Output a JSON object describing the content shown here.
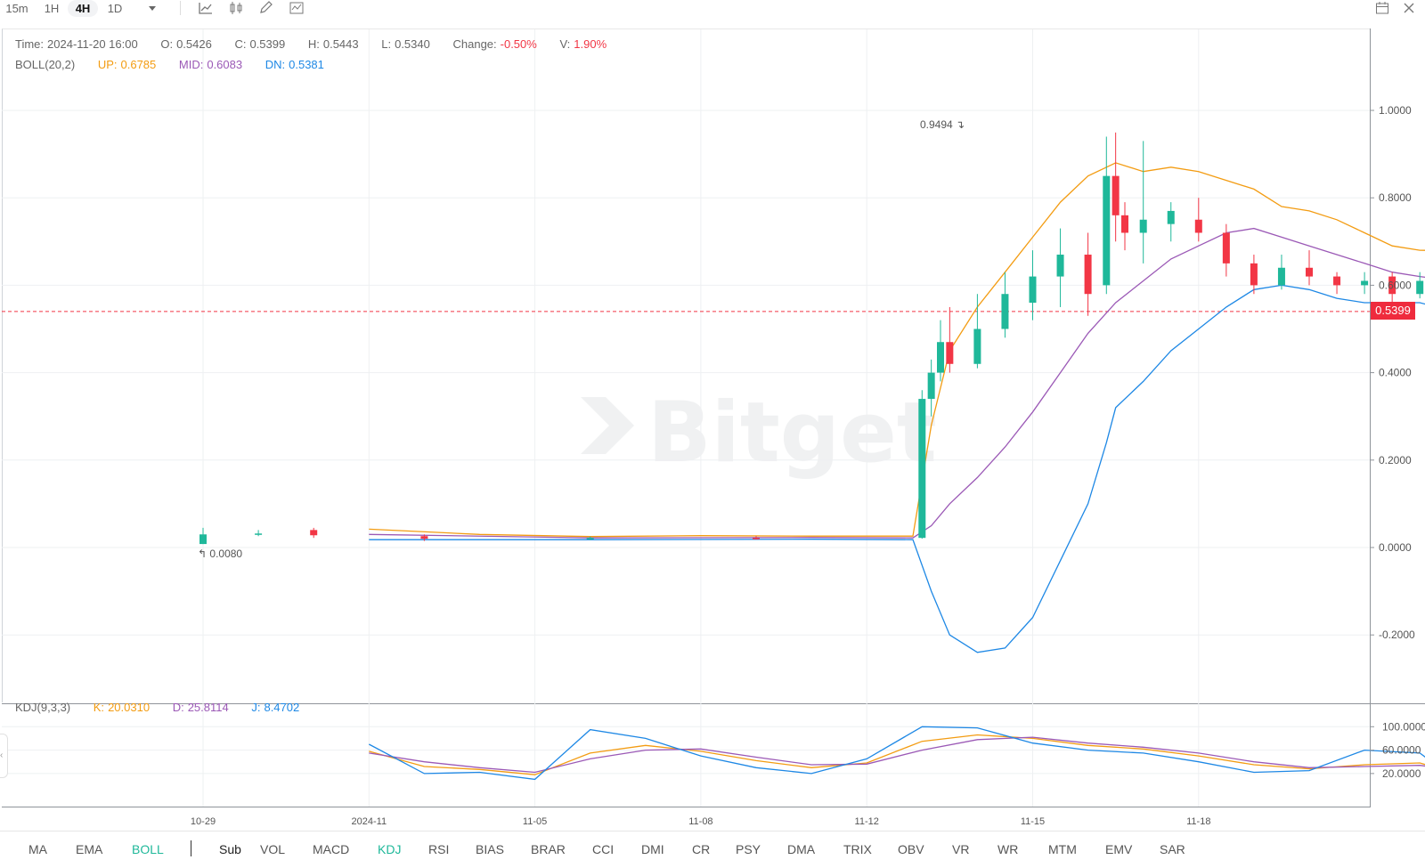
{
  "toolbar": {
    "timeframes": [
      "15m",
      "1H",
      "4H",
      "1D"
    ],
    "active_timeframe": "4H",
    "dropdown_icon": "caret-down-icon",
    "tools": [
      "line-chart-icon",
      "candlestick-icon",
      "pen-icon",
      "indicator-icon"
    ],
    "right_icons": [
      "calendar-icon",
      "close-icon"
    ]
  },
  "ohlc": {
    "time_label": "Time:",
    "time": "2024-11-20 16:00",
    "open_label": "O:",
    "open": "0.5426",
    "close_label": "C:",
    "close": "0.5399",
    "high_label": "H:",
    "high": "0.5443",
    "low_label": "L:",
    "low": "0.5340",
    "change_label": "Change:",
    "change": "-0.50%",
    "volume_label": "V:",
    "volume": "1.90%"
  },
  "boll": {
    "name": "BOLL(20,2)",
    "up_label": "UP:",
    "up": "0.6785",
    "mid_label": "MID:",
    "mid": "0.6083",
    "dn_label": "DN:",
    "dn": "0.5381"
  },
  "kdj": {
    "name": "KDJ(9,3,3)",
    "k_label": "K:",
    "k": "20.0310",
    "d_label": "D:",
    "d": "25.8114",
    "j_label": "J:",
    "j": "8.4702"
  },
  "price_tag": "0.5399",
  "watermark": "Bitget",
  "indicator_tabs": {
    "main": [
      "MA",
      "EMA",
      "BOLL"
    ],
    "main_active": "BOLL",
    "sub_label": "Sub",
    "sub": [
      "VOL",
      "MACD",
      "KDJ",
      "RSI",
      "BIAS",
      "BRAR",
      "CCI",
      "DMI",
      "CR",
      "PSY",
      "DMA",
      "TRIX",
      "OBV",
      "VR",
      "WR",
      "MTM",
      "EMV",
      "SAR"
    ],
    "sub_active": "KDJ"
  },
  "colors": {
    "up": "#1fb89a",
    "down": "#f23645",
    "boll_up": "#f39c12",
    "boll_mid": "#9b59b6",
    "boll_dn": "#1e88e5",
    "kdj_k": "#f39c12",
    "kdj_d": "#9b59b6",
    "kdj_j": "#1e88e5"
  },
  "chart_data": [
    {
      "type": "candlestick",
      "title": "",
      "timeframe": "4H",
      "x_range": [
        "2024-10-29",
        "2024-11-20 16:00"
      ],
      "x_tick_labels": [
        "10-29",
        "2024-11",
        "11-05",
        "11-08",
        "11-12",
        "11-15",
        "11-18"
      ],
      "y_ticks": [
        "1.0000",
        "0.8000",
        "0.6000",
        "0.4000",
        "0.2000",
        "0.0000",
        "-0.2000"
      ],
      "ylim": [
        -0.3,
        1.1
      ],
      "annotations": {
        "high_marker": "0.9494",
        "low_marker": "0.0080"
      },
      "last_price_line": 0.5399,
      "candles_sampled": [
        {
          "t": "10-29",
          "o": 0.008,
          "c": 0.03,
          "h": 0.045,
          "l": 0.008
        },
        {
          "t": "10-30",
          "o": 0.03,
          "c": 0.032,
          "h": 0.04,
          "l": 0.026
        },
        {
          "t": "10-31",
          "o": 0.04,
          "c": 0.028,
          "h": 0.045,
          "l": 0.022
        },
        {
          "t": "11-02",
          "o": 0.026,
          "c": 0.02,
          "h": 0.03,
          "l": 0.015
        },
        {
          "t": "11-05",
          "o": 0.02,
          "c": 0.022,
          "h": 0.025,
          "l": 0.017
        },
        {
          "t": "11-08",
          "o": 0.022,
          "c": 0.021,
          "h": 0.026,
          "l": 0.018
        },
        {
          "t": "11-11 00:00",
          "o": 0.022,
          "c": 0.34,
          "h": 0.36,
          "l": 0.02
        },
        {
          "t": "11-11 04:00",
          "o": 0.34,
          "c": 0.4,
          "h": 0.43,
          "l": 0.3
        },
        {
          "t": "11-11 08:00",
          "o": 0.4,
          "c": 0.47,
          "h": 0.52,
          "l": 0.38
        },
        {
          "t": "11-11 12:00",
          "o": 0.47,
          "c": 0.42,
          "h": 0.55,
          "l": 0.4
        },
        {
          "t": "11-12 00:00",
          "o": 0.42,
          "c": 0.5,
          "h": 0.58,
          "l": 0.41
        },
        {
          "t": "11-12 12:00",
          "o": 0.5,
          "c": 0.58,
          "h": 0.63,
          "l": 0.48
        },
        {
          "t": "11-13 00:00",
          "o": 0.56,
          "c": 0.62,
          "h": 0.68,
          "l": 0.52
        },
        {
          "t": "11-13 12:00",
          "o": 0.62,
          "c": 0.67,
          "h": 0.73,
          "l": 0.55
        },
        {
          "t": "11-14 00:00",
          "o": 0.67,
          "c": 0.58,
          "h": 0.72,
          "l": 0.53
        },
        {
          "t": "11-14 08:00",
          "o": 0.6,
          "c": 0.85,
          "h": 0.94,
          "l": 0.58
        },
        {
          "t": "11-14 12:00",
          "o": 0.85,
          "c": 0.76,
          "h": 0.9494,
          "l": 0.7
        },
        {
          "t": "11-14 16:00",
          "o": 0.76,
          "c": 0.72,
          "h": 0.79,
          "l": 0.68
        },
        {
          "t": "11-15 00:00",
          "o": 0.72,
          "c": 0.75,
          "h": 0.93,
          "l": 0.65
        },
        {
          "t": "11-15 12:00",
          "o": 0.74,
          "c": 0.77,
          "h": 0.79,
          "l": 0.7
        },
        {
          "t": "11-16 00:00",
          "o": 0.75,
          "c": 0.72,
          "h": 0.8,
          "l": 0.7
        },
        {
          "t": "11-16 12:00",
          "o": 0.72,
          "c": 0.65,
          "h": 0.74,
          "l": 0.62
        },
        {
          "t": "11-17 00:00",
          "o": 0.65,
          "c": 0.6,
          "h": 0.67,
          "l": 0.58
        },
        {
          "t": "11-17 12:00",
          "o": 0.6,
          "c": 0.64,
          "h": 0.67,
          "l": 0.59
        },
        {
          "t": "11-18 00:00",
          "o": 0.64,
          "c": 0.62,
          "h": 0.68,
          "l": 0.6
        },
        {
          "t": "11-18 12:00",
          "o": 0.62,
          "c": 0.6,
          "h": 0.63,
          "l": 0.58
        },
        {
          "t": "11-19 00:00",
          "o": 0.6,
          "c": 0.61,
          "h": 0.63,
          "l": 0.58
        },
        {
          "t": "11-19 12:00",
          "o": 0.62,
          "c": 0.58,
          "h": 0.63,
          "l": 0.56
        },
        {
          "t": "11-20 00:00",
          "o": 0.58,
          "c": 0.61,
          "h": 0.63,
          "l": 0.57
        },
        {
          "t": "11-20 08:00",
          "o": 0.61,
          "c": 0.57,
          "h": 0.62,
          "l": 0.55
        },
        {
          "t": "11-20 16:00",
          "o": 0.5426,
          "c": 0.5399,
          "h": 0.5443,
          "l": 0.534
        }
      ],
      "series": [
        {
          "name": "UP",
          "color": "#f39c12",
          "points": [
            [
              "11-01",
              0.042
            ],
            [
              "11-03",
              0.03
            ],
            [
              "11-05",
              0.025
            ],
            [
              "11-07",
              0.027
            ],
            [
              "11-09",
              0.026
            ],
            [
              "11-10 20:00",
              0.026
            ],
            [
              "11-11 04:00",
              0.28
            ],
            [
              "11-11 12:00",
              0.45
            ],
            [
              "11-12 00:00",
              0.55
            ],
            [
              "11-12 12:00",
              0.63
            ],
            [
              "11-13 00:00",
              0.71
            ],
            [
              "11-13 12:00",
              0.79
            ],
            [
              "11-14 00:00",
              0.85
            ],
            [
              "11-14 12:00",
              0.88
            ],
            [
              "11-15 00:00",
              0.86
            ],
            [
              "11-15 12:00",
              0.87
            ],
            [
              "11-16 00:00",
              0.86
            ],
            [
              "11-16 12:00",
              0.84
            ],
            [
              "11-17 00:00",
              0.82
            ],
            [
              "11-17 12:00",
              0.78
            ],
            [
              "11-18 00:00",
              0.77
            ],
            [
              "11-18 12:00",
              0.75
            ],
            [
              "11-19 00:00",
              0.72
            ],
            [
              "11-19 12:00",
              0.69
            ],
            [
              "11-20 00:00",
              0.68
            ],
            [
              "11-20 16:00",
              0.6785
            ]
          ]
        },
        {
          "name": "MID",
          "color": "#9b59b6",
          "points": [
            [
              "11-01",
              0.03
            ],
            [
              "11-05",
              0.022
            ],
            [
              "11-09",
              0.023
            ],
            [
              "11-10 20:00",
              0.022
            ],
            [
              "11-11 04:00",
              0.05
            ],
            [
              "11-11 12:00",
              0.1
            ],
            [
              "11-12 00:00",
              0.16
            ],
            [
              "11-12 12:00",
              0.23
            ],
            [
              "11-13 00:00",
              0.31
            ],
            [
              "11-13 12:00",
              0.4
            ],
            [
              "11-14 00:00",
              0.49
            ],
            [
              "11-14 12:00",
              0.56
            ],
            [
              "11-15 00:00",
              0.61
            ],
            [
              "11-15 12:00",
              0.66
            ],
            [
              "11-16 00:00",
              0.69
            ],
            [
              "11-16 12:00",
              0.72
            ],
            [
              "11-17 00:00",
              0.73
            ],
            [
              "11-17 12:00",
              0.71
            ],
            [
              "11-18 00:00",
              0.69
            ],
            [
              "11-18 12:00",
              0.67
            ],
            [
              "11-19 00:00",
              0.65
            ],
            [
              "11-19 12:00",
              0.63
            ],
            [
              "11-20 00:00",
              0.62
            ],
            [
              "11-20 16:00",
              0.6083
            ]
          ]
        },
        {
          "name": "DN",
          "color": "#1e88e5",
          "points": [
            [
              "11-01",
              0.018
            ],
            [
              "11-05",
              0.018
            ],
            [
              "11-09",
              0.019
            ],
            [
              "11-10 20:00",
              0.018
            ],
            [
              "11-11 04:00",
              -0.1
            ],
            [
              "11-11 12:00",
              -0.2
            ],
            [
              "11-12 00:00",
              -0.24
            ],
            [
              "11-12 12:00",
              -0.23
            ],
            [
              "11-13 00:00",
              -0.16
            ],
            [
              "11-13 12:00",
              -0.03
            ],
            [
              "11-14 00:00",
              0.1
            ],
            [
              "11-14 08:00",
              0.24
            ],
            [
              "11-14 12:00",
              0.32
            ],
            [
              "11-15 00:00",
              0.38
            ],
            [
              "11-15 12:00",
              0.45
            ],
            [
              "11-16 00:00",
              0.5
            ],
            [
              "11-16 12:00",
              0.55
            ],
            [
              "11-17 00:00",
              0.59
            ],
            [
              "11-17 12:00",
              0.6
            ],
            [
              "11-18 00:00",
              0.59
            ],
            [
              "11-18 12:00",
              0.57
            ],
            [
              "11-19 00:00",
              0.56
            ],
            [
              "11-19 12:00",
              0.56
            ],
            [
              "11-20 00:00",
              0.56
            ],
            [
              "11-20 16:00",
              0.5381
            ]
          ]
        }
      ]
    },
    {
      "type": "line",
      "title": "",
      "y_ticks": [
        "100.0000",
        "60.0000",
        "20.0000"
      ],
      "ylim": [
        0,
        110
      ],
      "series": [
        {
          "name": "K",
          "color": "#f39c12",
          "points": [
            [
              "11-01",
              58
            ],
            [
              "11-02",
              32
            ],
            [
              "11-03",
              27
            ],
            [
              "11-04",
              18
            ],
            [
              "11-05",
              55
            ],
            [
              "11-06",
              68
            ],
            [
              "11-07",
              58
            ],
            [
              "11-08",
              42
            ],
            [
              "11-09",
              30
            ],
            [
              "11-10",
              38
            ],
            [
              "11-11",
              75
            ],
            [
              "11-12",
              86
            ],
            [
              "11-13",
              80
            ],
            [
              "11-14",
              68
            ],
            [
              "11-15",
              62
            ],
            [
              "11-16",
              50
            ],
            [
              "11-17",
              35
            ],
            [
              "11-18",
              28
            ],
            [
              "11-19",
              35
            ],
            [
              "11-20",
              38
            ],
            [
              "11-20 16:00",
              20.031
            ]
          ]
        },
        {
          "name": "D",
          "color": "#9b59b6",
          "points": [
            [
              "11-01",
              55
            ],
            [
              "11-02",
              40
            ],
            [
              "11-03",
              30
            ],
            [
              "11-04",
              22
            ],
            [
              "11-05",
              45
            ],
            [
              "11-06",
              60
            ],
            [
              "11-07",
              62
            ],
            [
              "11-08",
              48
            ],
            [
              "11-09",
              35
            ],
            [
              "11-10",
              36
            ],
            [
              "11-11",
              60
            ],
            [
              "11-12",
              78
            ],
            [
              "11-13",
              82
            ],
            [
              "11-14",
              72
            ],
            [
              "11-15",
              65
            ],
            [
              "11-16",
              55
            ],
            [
              "11-17",
              40
            ],
            [
              "11-18",
              30
            ],
            [
              "11-19",
              32
            ],
            [
              "11-20",
              34
            ],
            [
              "11-20 16:00",
              25.8114
            ]
          ]
        },
        {
          "name": "J",
          "color": "#1e88e5",
          "points": [
            [
              "11-01",
              70
            ],
            [
              "11-02",
              20
            ],
            [
              "11-03",
              22
            ],
            [
              "11-04",
              10
            ],
            [
              "11-05",
              95
            ],
            [
              "11-06",
              80
            ],
            [
              "11-07",
              50
            ],
            [
              "11-08",
              30
            ],
            [
              "11-09",
              20
            ],
            [
              "11-10",
              45
            ],
            [
              "11-11",
              100
            ],
            [
              "11-12",
              98
            ],
            [
              "11-13",
              72
            ],
            [
              "11-14",
              60
            ],
            [
              "11-15",
              55
            ],
            [
              "11-16",
              40
            ],
            [
              "11-17",
              22
            ],
            [
              "11-18",
              25
            ],
            [
              "11-19",
              60
            ],
            [
              "11-20",
              55
            ],
            [
              "11-20 16:00",
              8.4702
            ]
          ]
        }
      ]
    }
  ]
}
